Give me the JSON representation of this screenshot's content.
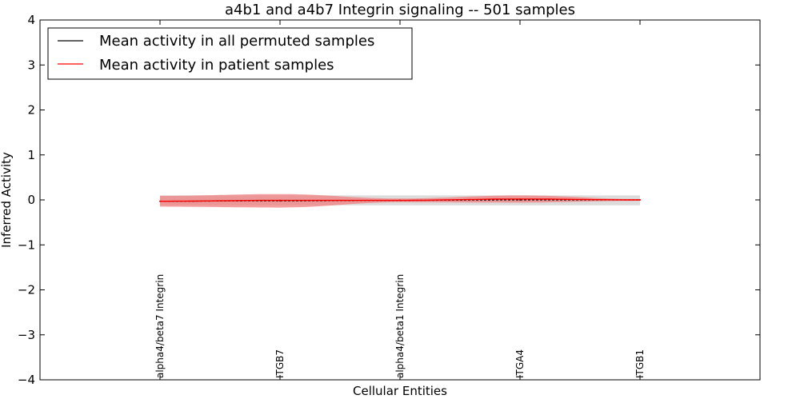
{
  "chart_data": {
    "type": "line",
    "title": "a4b1 and a4b7 Integrin signaling -- 501 samples",
    "xlabel": "Cellular Entities",
    "ylabel": "Inferred Activity",
    "ylim": [
      -4,
      4
    ],
    "yticks": [
      -4,
      -3,
      -2,
      -1,
      0,
      1,
      2,
      3,
      4
    ],
    "ytick_labels": [
      "−4",
      "−3",
      "−2",
      "−1",
      "0",
      "1",
      "2",
      "3",
      "4"
    ],
    "categories": [
      "alpha4/beta7 Integrin",
      "ITGB7",
      "alpha4/beta1 Integrin",
      "ITGA4",
      "ITGB1"
    ],
    "legend_position": "top-left",
    "series": [
      {
        "name": "Mean activity in all permuted samples",
        "color": "#000000",
        "values": [
          -0.03,
          -0.02,
          -0.01,
          0.0,
          0.0
        ],
        "band_low": [
          -0.12,
          -0.12,
          -0.12,
          -0.12,
          -0.12
        ],
        "band_high": [
          0.1,
          0.1,
          0.1,
          0.1,
          0.1
        ],
        "band_color": "#bfbfbf"
      },
      {
        "name": "Mean activity in patient samples",
        "color": "#ff0000",
        "values": [
          -0.03,
          -0.01,
          -0.01,
          0.02,
          0.0
        ],
        "band_low": [
          -0.15,
          -0.17,
          -0.05,
          -0.06,
          -0.02
        ],
        "band_high": [
          0.09,
          0.13,
          0.03,
          0.1,
          0.02
        ],
        "band_color": "#f08080"
      }
    ]
  }
}
